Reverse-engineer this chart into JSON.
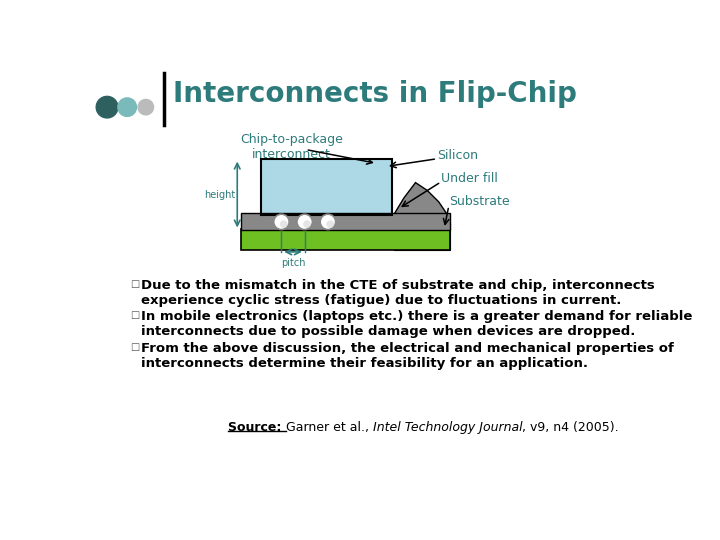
{
  "title": "Interconnects in Flip-Chip",
  "title_color": "#2E7B7B",
  "title_fontsize": 20,
  "bg_color": "#FFFFFF",
  "dot_colors": [
    "#2E6060",
    "#7ABABA",
    "#BBBBBB"
  ],
  "label_chip_interconnect": "Chip-to-package\ninterconnect",
  "label_silicon": "Silicon",
  "label_underfill": "Under fill",
  "label_substrate": "Substrate",
  "label_height": "height",
  "label_pitch": "pitch",
  "label_color": "#2E7B7B",
  "chip_color": "#ADD8E6",
  "substrate_color": "#6DBF22",
  "underfill_color": "#888888",
  "solder_color": "#E0E0E0",
  "bullet_color": "#555555",
  "text_color": "#000000",
  "bullet1": "Due to the mismatch in the CTE of substrate and chip, interconnects\nexperience cyclic stress (fatigue) due to fluctuations in current.",
  "bullet2": "In mobile electronics (laptops etc.) there is a greater demand for reliable\ninterconnects due to possible damage when devices are dropped.",
  "bullet3": "From the above discussion, the electrical and mechanical properties of\ninterconnects determine their feasibility for an application.",
  "source_label": "Source: ",
  "source_main": "Garner et al., ",
  "source_italic": "Intel Technology Journal",
  "source_suffix": ", v9, n4 (2005)."
}
